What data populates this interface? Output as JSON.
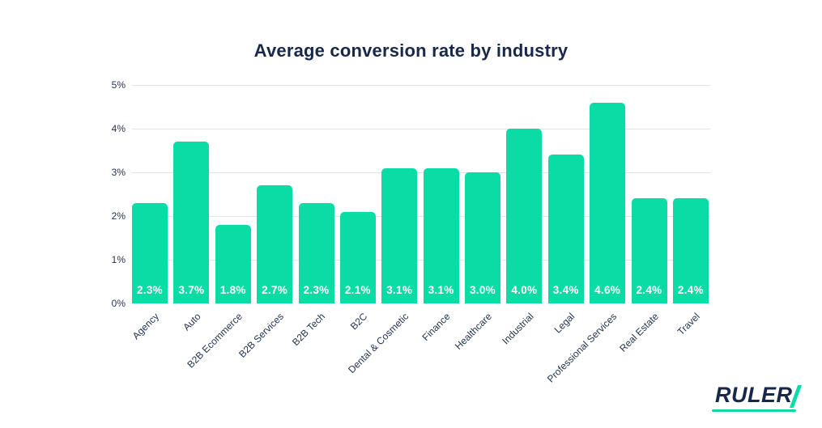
{
  "chart": {
    "title": "Average conversion rate by industry"
  },
  "chart_data": {
    "type": "bar",
    "title": "Average conversion rate by industry",
    "categories": [
      "Agency",
      "Auto",
      "B2B Ecommerce",
      "B2B Services",
      "B2B Tech",
      "B2C",
      "Dental & Cosmetic",
      "Finance",
      "Healthcare",
      "Industrial",
      "Legal",
      "Professional Services",
      "Real Estate",
      "Travel"
    ],
    "values": [
      2.3,
      3.7,
      1.8,
      2.7,
      2.3,
      2.1,
      3.1,
      3.1,
      3.0,
      4.0,
      3.4,
      4.6,
      2.4,
      2.4
    ],
    "value_labels": [
      "2.3%",
      "3.7%",
      "1.8%",
      "2.7%",
      "2.3%",
      "2.1%",
      "3.1%",
      "3.1%",
      "3.0%",
      "4.0%",
      "3.4%",
      "4.6%",
      "2.4%",
      "2.4%"
    ],
    "xlabel": "",
    "ylabel": "",
    "y_ticks": [
      "0%",
      "1%",
      "2%",
      "3%",
      "4%",
      "5%"
    ],
    "ylim": [
      0,
      5
    ],
    "grid": true,
    "legend": false,
    "bar_color": "#0bdca6",
    "bar_label_color": "#ffffff",
    "axis_text_color": "#24344f",
    "grid_color": "#dfe3ea"
  },
  "logo": {
    "text": "RULER",
    "slash_icon": "diagonal-green-slash",
    "accent_color": "#0bdca6",
    "text_color": "#18284b"
  }
}
